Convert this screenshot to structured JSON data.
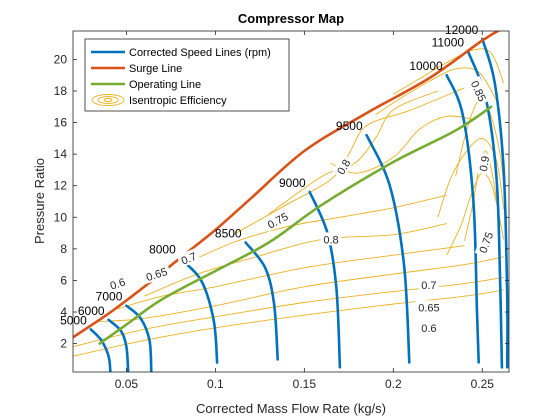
{
  "chart_data": {
    "type": "line",
    "title": "Compressor Map",
    "xlabel": "Corrected Mass Flow Rate (kg/s)",
    "ylabel": "Pressure Ratio",
    "xlim": [
      0.02,
      0.265
    ],
    "ylim": [
      0.2,
      21.8
    ],
    "xticks": [
      0.05,
      0.1,
      0.15,
      0.2,
      0.25
    ],
    "xtick_labels": [
      "0.05",
      "0.1",
      "0.15",
      "0.2",
      "0.25"
    ],
    "yticks": [
      2,
      4,
      6,
      8,
      10,
      12,
      14,
      16,
      18,
      20
    ],
    "ytick_labels": [
      "2",
      "4",
      "6",
      "8",
      "10",
      "12",
      "14",
      "16",
      "18",
      "20"
    ],
    "grid": false,
    "legend_position": "top-left",
    "legend": [
      {
        "label": "Corrected Speed Lines (rpm)",
        "color": "#0072BD",
        "style": "line"
      },
      {
        "label": "Surge Line",
        "color": "#D95319",
        "style": "line"
      },
      {
        "label": "Operating Line",
        "color": "#77AC30",
        "style": "line"
      },
      {
        "label": "Isentropic Efficiency",
        "color": "#EDB120",
        "style": "contour"
      }
    ],
    "series": [
      {
        "name": "Surge Line",
        "color": "#D95319",
        "x": [
          0.02,
          0.04,
          0.06,
          0.08,
          0.1,
          0.12,
          0.15,
          0.185,
          0.22,
          0.25,
          0.262
        ],
        "y": [
          2.4,
          3.9,
          5.6,
          7.4,
          9.2,
          11.2,
          14.2,
          16.6,
          18.8,
          21.2,
          22
        ]
      },
      {
        "name": "Operating Line",
        "color": "#77AC30",
        "x": [
          0.035,
          0.05,
          0.07,
          0.1,
          0.13,
          0.16,
          0.2,
          0.235,
          0.255
        ],
        "y": [
          2.0,
          3.2,
          4.8,
          6.6,
          8.4,
          10.8,
          13.5,
          15.5,
          17.0
        ]
      }
    ],
    "speed_lines": {
      "color": "#0072BD",
      "lines": [
        {
          "label": "5000",
          "x": [
            0.03,
            0.036,
            0.04,
            0.041
          ],
          "y": [
            2.9,
            2.2,
            1.2,
            0.2
          ]
        },
        {
          "label": "6000",
          "x": [
            0.04,
            0.047,
            0.05,
            0.051
          ],
          "y": [
            3.5,
            2.8,
            1.8,
            0.2
          ]
        },
        {
          "label": "7000",
          "x": [
            0.05,
            0.058,
            0.063,
            0.064
          ],
          "y": [
            4.4,
            3.6,
            2.2,
            0.2
          ]
        },
        {
          "label": "8000",
          "x": [
            0.08,
            0.092,
            0.099,
            0.101
          ],
          "y": [
            7.4,
            6.0,
            3.5,
            0.8
          ]
        },
        {
          "label": "8500",
          "x": [
            0.117,
            0.128,
            0.133,
            0.135
          ],
          "y": [
            8.4,
            6.8,
            4.5,
            1.0
          ]
        },
        {
          "label": "9000",
          "x": [
            0.153,
            0.163,
            0.168,
            0.17
          ],
          "y": [
            11.6,
            9.0,
            5.5,
            0.5
          ]
        },
        {
          "label": "9500",
          "x": [
            0.185,
            0.198,
            0.206,
            0.209
          ],
          "y": [
            15.2,
            12.0,
            7.0,
            0.8
          ]
        },
        {
          "label": "10000",
          "x": [
            0.23,
            0.239,
            0.245,
            0.247,
            0.248
          ],
          "y": [
            19.0,
            16.5,
            11.0,
            4.0,
            0.8
          ]
        },
        {
          "label": "11000",
          "x": [
            0.242,
            0.252,
            0.258,
            0.26,
            0.261
          ],
          "y": [
            20.5,
            17.5,
            12.5,
            6.0,
            0.5
          ]
        },
        {
          "label": "12000",
          "x": [
            0.25,
            0.257,
            0.262,
            0.264,
            0.264
          ],
          "y": [
            21.3,
            18.5,
            13.0,
            5.0,
            0.5
          ]
        }
      ]
    },
    "efficiency_contours": {
      "color": "#EDB120",
      "labels": [
        {
          "text": "0.6",
          "x": 0.045,
          "y": 5.8
        },
        {
          "text": "0.65",
          "x": 0.067,
          "y": 6.4
        },
        {
          "text": "0.7",
          "x": 0.085,
          "y": 7.4
        },
        {
          "text": "0.75",
          "x": 0.135,
          "y": 9.8
        },
        {
          "text": "0.8",
          "x": 0.172,
          "y": 13.2
        },
        {
          "text": "0.8",
          "x": 0.165,
          "y": 8.6
        },
        {
          "text": "0.85",
          "x": 0.248,
          "y": 18.0
        },
        {
          "text": "0.9",
          "x": 0.251,
          "y": 13.4
        },
        {
          "text": "0.75",
          "x": 0.252,
          "y": 8.4
        },
        {
          "text": "0.7",
          "x": 0.22,
          "y": 5.7
        },
        {
          "text": "0.65",
          "x": 0.22,
          "y": 4.3
        },
        {
          "text": "0.6",
          "x": 0.22,
          "y": 3.0
        }
      ]
    }
  }
}
